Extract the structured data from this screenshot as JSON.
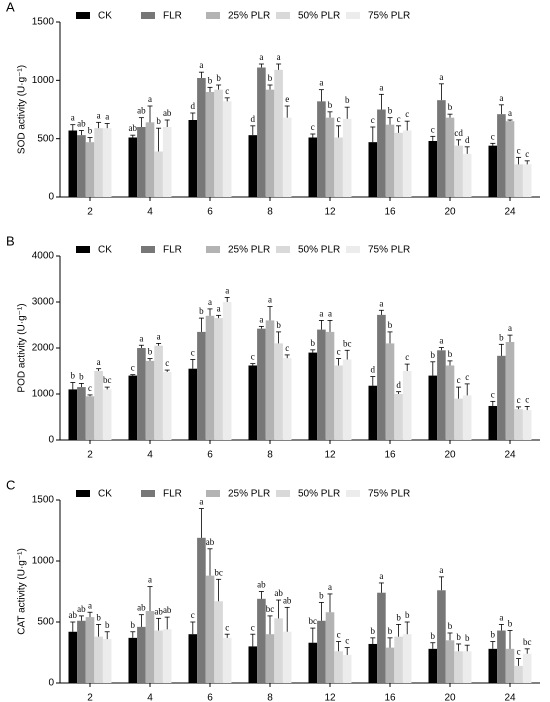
{
  "chart_data": [
    {
      "type": "bar",
      "panel_label": "A",
      "y_label": "SOD activity (U·g⁻¹)",
      "categories": [
        "2",
        "4",
        "6",
        "8",
        "12",
        "16",
        "20",
        "24"
      ],
      "ylim": [
        0,
        1500
      ],
      "yticks": [
        0,
        500,
        1000,
        1500
      ],
      "series": [
        {
          "name": "CK",
          "color": "#000000",
          "values": [
            570,
            510,
            660,
            530,
            510,
            470,
            480,
            440
          ],
          "errors": [
            50,
            20,
            60,
            80,
            30,
            130,
            40,
            20
          ],
          "letters": [
            "a",
            "ab",
            "d",
            "d",
            "c",
            "c",
            "c",
            "c"
          ]
        },
        {
          "name": "FLR",
          "color": "#777777",
          "values": [
            530,
            600,
            1020,
            1110,
            820,
            750,
            830,
            710
          ],
          "errors": [
            40,
            80,
            50,
            30,
            100,
            130,
            140,
            80
          ],
          "letters": [
            "ab",
            "ab",
            "a",
            "a",
            "a",
            "a",
            "a",
            "a"
          ]
        },
        {
          "name": "25% PLR",
          "color": "#b3b3b3",
          "values": [
            470,
            640,
            900,
            920,
            680,
            620,
            680,
            650
          ],
          "errors": [
            40,
            140,
            40,
            40,
            50,
            60,
            30,
            10
          ],
          "letters": [
            "b",
            "a",
            "b",
            "b",
            "b",
            "b",
            "b",
            "a"
          ]
        },
        {
          "name": "50% PLR",
          "color": "#d9d9d9",
          "values": [
            590,
            390,
            920,
            1090,
            510,
            550,
            440,
            280
          ],
          "errors": [
            50,
            200,
            40,
            50,
            100,
            60,
            50,
            60
          ],
          "letters": [
            "a",
            "b",
            "b",
            "a",
            "c",
            "c",
            "cd",
            "c"
          ]
        },
        {
          "name": "75% PLR",
          "color": "#ececec",
          "values": [
            590,
            600,
            820,
            680,
            670,
            570,
            370,
            280
          ],
          "errors": [
            40,
            60,
            30,
            100,
            100,
            80,
            60,
            30
          ],
          "letters": [
            "a",
            "ab",
            "c",
            "e",
            "b",
            "c",
            "d",
            "c"
          ]
        }
      ]
    },
    {
      "type": "bar",
      "panel_label": "B",
      "y_label": "POD activity (U·g⁻¹)",
      "categories": [
        "2",
        "4",
        "6",
        "8",
        "12",
        "16",
        "20",
        "24"
      ],
      "ylim": [
        0,
        4000
      ],
      "yticks": [
        0,
        1000,
        2000,
        3000,
        4000
      ],
      "series": [
        {
          "name": "CK",
          "color": "#000000",
          "values": [
            1100,
            1400,
            1550,
            1620,
            1900,
            1180,
            1400,
            740
          ],
          "errors": [
            150,
            20,
            200,
            40,
            60,
            200,
            300,
            100
          ],
          "letters": [
            "b",
            "c",
            "c",
            "c",
            "b",
            "d",
            "b",
            "c"
          ]
        },
        {
          "name": "FLR",
          "color": "#777777",
          "values": [
            1150,
            2000,
            2350,
            2420,
            2400,
            2720,
            1950,
            1830
          ],
          "errors": [
            80,
            60,
            300,
            50,
            200,
            100,
            60,
            250
          ],
          "letters": [
            "b",
            "a",
            "b",
            "a",
            "a",
            "a",
            "a",
            "b"
          ]
        },
        {
          "name": "25% PLR",
          "color": "#b3b3b3",
          "values": [
            950,
            1720,
            2700,
            2600,
            2350,
            2100,
            1620,
            2130
          ],
          "errors": [
            30,
            50,
            150,
            300,
            250,
            250,
            100,
            150
          ],
          "letters": [
            "c",
            "b",
            "a",
            "a",
            "a",
            "b",
            "b",
            "a"
          ]
        },
        {
          "name": "50% PLR",
          "color": "#d9d9d9",
          "values": [
            1500,
            2050,
            2650,
            2100,
            1620,
            1000,
            900,
            670
          ],
          "errors": [
            50,
            50,
            60,
            250,
            150,
            50,
            250,
            50
          ],
          "letters": [
            "a",
            "a",
            "a",
            "b",
            "c",
            "d",
            "c",
            "c"
          ]
        },
        {
          "name": "75% PLR",
          "color": "#ececec",
          "values": [
            1100,
            1480,
            3000,
            1780,
            1750,
            1500,
            970,
            650
          ],
          "errors": [
            50,
            40,
            100,
            70,
            200,
            150,
            250,
            80
          ],
          "letters": [
            "bc",
            "c",
            "a",
            "c",
            "bc",
            "c",
            "c",
            "c"
          ]
        }
      ]
    },
    {
      "type": "bar",
      "panel_label": "C",
      "y_label": "CAT activity (U·g⁻¹)",
      "categories": [
        "2",
        "4",
        "6",
        "8",
        "12",
        "16",
        "20",
        "24"
      ],
      "ylim": [
        0,
        1500
      ],
      "yticks": [
        0,
        500,
        1000,
        1500
      ],
      "series": [
        {
          "name": "CK",
          "color": "#000000",
          "values": [
            420,
            370,
            400,
            300,
            330,
            320,
            280,
            280
          ],
          "errors": [
            80,
            50,
            100,
            100,
            120,
            50,
            50,
            60
          ],
          "letters": [
            "ab",
            "b",
            "c",
            "c",
            "bc",
            "b",
            "b",
            "b"
          ]
        },
        {
          "name": "FLR",
          "color": "#777777",
          "values": [
            510,
            460,
            1190,
            690,
            510,
            740,
            760,
            430
          ],
          "errors": [
            40,
            100,
            240,
            60,
            150,
            80,
            110,
            50
          ],
          "letters": [
            "ab",
            "ab",
            "a",
            "ab",
            "b",
            "a",
            "a",
            "a"
          ]
        },
        {
          "name": "25% PLR",
          "color": "#b3b3b3",
          "values": [
            540,
            590,
            880,
            400,
            580,
            290,
            350,
            280
          ],
          "errors": [
            40,
            200,
            220,
            150,
            150,
            80,
            60,
            150
          ],
          "letters": [
            "a",
            "a",
            "ab",
            "bc",
            "a",
            "b",
            "b",
            "b"
          ]
        },
        {
          "name": "50% PLR",
          "color": "#d9d9d9",
          "values": [
            380,
            430,
            670,
            530,
            260,
            380,
            260,
            140
          ],
          "errors": [
            100,
            100,
            180,
            150,
            80,
            100,
            60,
            60
          ],
          "letters": [
            "b",
            "ab",
            "bc",
            "ab",
            "c",
            "b",
            "b",
            "c"
          ]
        },
        {
          "name": "75% PLR",
          "color": "#ececec",
          "values": [
            360,
            440,
            370,
            420,
            230,
            400,
            260,
            240
          ],
          "errors": [
            60,
            100,
            30,
            200,
            60,
            100,
            50,
            40
          ],
          "letters": [
            "b",
            "ab",
            "c",
            "ab",
            "c",
            "b",
            "b",
            "bc"
          ]
        }
      ]
    }
  ]
}
